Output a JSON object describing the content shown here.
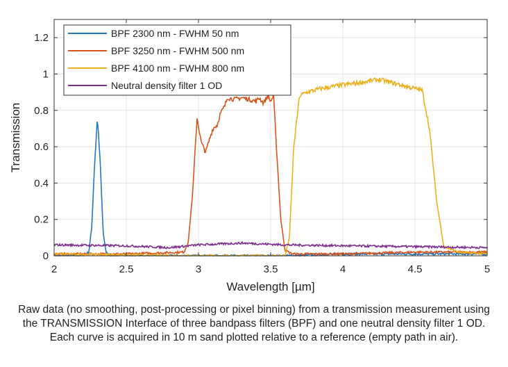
{
  "chart_data": {
    "type": "line",
    "title": "",
    "xlabel": "Wavelength [µm]",
    "ylabel": "Transmission",
    "xlim": [
      2,
      5
    ],
    "ylim": [
      0,
      1.3
    ],
    "xticks": [
      2,
      2.5,
      3,
      3.5,
      4,
      4.5,
      5
    ],
    "xtick_labels": [
      "2",
      "2.5",
      "3",
      "3.5",
      "4",
      "4.5",
      "5"
    ],
    "yticks": [
      0,
      0.2,
      0.4,
      0.6,
      0.8,
      1,
      1.2
    ],
    "ytick_labels": [
      "0",
      "0.2",
      "0.4",
      "0.6",
      "0.8",
      "1",
      "1.2"
    ],
    "grid": true,
    "legend_placement": "top-left",
    "series": [
      {
        "name": "BPF 2300 nm - FWHM 50 nm",
        "color": "#1f77c4",
        "x": [
          2.0,
          2.2,
          2.24,
          2.26,
          2.28,
          2.3,
          2.32,
          2.34,
          2.36,
          2.4,
          3.0,
          3.6,
          4.0,
          5.0
        ],
        "y": [
          0.0,
          0.0,
          0.02,
          0.15,
          0.5,
          0.76,
          0.5,
          0.12,
          0.02,
          0.0,
          0.0,
          0.0,
          0.01,
          0.01
        ]
      },
      {
        "name": "BPF 3250 nm - FWHM 500 nm",
        "color": "#d95319",
        "x": [
          2.0,
          2.5,
          2.9,
          2.93,
          2.96,
          2.99,
          3.02,
          3.05,
          3.08,
          3.1,
          3.13,
          3.15,
          3.18,
          3.2,
          3.25,
          3.3,
          3.35,
          3.4,
          3.42,
          3.45,
          3.48,
          3.5,
          3.52,
          3.54,
          3.57,
          3.6,
          3.65,
          4.0,
          4.5,
          5.0
        ],
        "y": [
          0.01,
          0.01,
          0.02,
          0.08,
          0.35,
          0.76,
          0.62,
          0.57,
          0.65,
          0.7,
          0.72,
          0.78,
          0.82,
          0.87,
          0.86,
          0.87,
          0.86,
          0.85,
          0.87,
          0.84,
          0.88,
          0.85,
          0.88,
          0.6,
          0.2,
          0.03,
          0.01,
          0.01,
          0.02,
          0.02
        ]
      },
      {
        "name": "BPF 4100 nm - FWHM 800 nm",
        "color": "#edb120",
        "x": [
          2.0,
          3.0,
          3.6,
          3.63,
          3.66,
          3.7,
          3.75,
          3.85,
          4.0,
          4.1,
          4.25,
          4.35,
          4.45,
          4.55,
          4.6,
          4.65,
          4.7,
          4.8,
          5.0
        ],
        "y": [
          0.01,
          0.0,
          0.0,
          0.1,
          0.6,
          0.88,
          0.9,
          0.92,
          0.94,
          0.95,
          0.97,
          0.95,
          0.93,
          0.91,
          0.7,
          0.3,
          0.05,
          0.02,
          0.01
        ]
      },
      {
        "name": "Neutral density filter 1 OD",
        "color": "#7e2f8e",
        "x": [
          2.0,
          2.5,
          2.8,
          3.0,
          3.3,
          3.6,
          4.0,
          4.5,
          5.0
        ],
        "y": [
          0.06,
          0.055,
          0.045,
          0.06,
          0.07,
          0.06,
          0.055,
          0.05,
          0.045
        ]
      }
    ]
  },
  "caption": "Raw data (no smoothing, post-processing or pixel binning) from a transmission measurement using the TRANSMISSION Interface of three bandpass filters (BPF) and one neutral density filter 1 OD. Each curve is acquired in 10 m sand plotted relative to a reference (empty path in air)."
}
